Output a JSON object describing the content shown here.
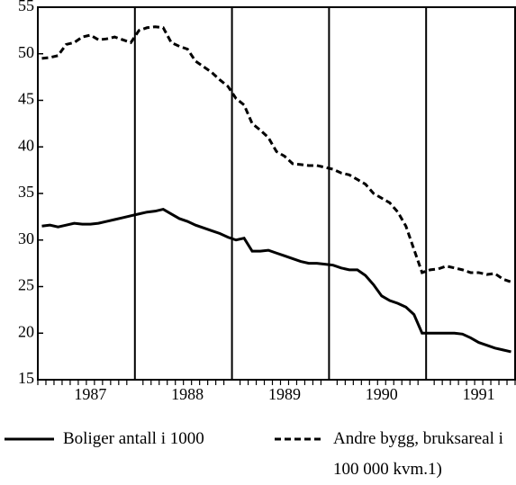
{
  "chart_data": {
    "type": "line",
    "categories": [
      null,
      null,
      null,
      null,
      null,
      null,
      "1987",
      null,
      null,
      null,
      null,
      null,
      null,
      null,
      null,
      null,
      null,
      null,
      "1988",
      null,
      null,
      null,
      null,
      null,
      null,
      null,
      null,
      null,
      null,
      null,
      "1989",
      null,
      null,
      null,
      null,
      null,
      null,
      null,
      null,
      null,
      null,
      null,
      "1990",
      null,
      null,
      null,
      null,
      null,
      null,
      null,
      null,
      null,
      null,
      null,
      "1991",
      null,
      null,
      null,
      null
    ],
    "series": [
      {
        "name": "Boliger antall i 1000",
        "color": "#000000",
        "dash": false,
        "values": [
          31.5,
          31.6,
          31.4,
          31.6,
          31.8,
          31.7,
          31.7,
          31.8,
          32.0,
          32.2,
          32.4,
          32.6,
          32.8,
          33.0,
          33.1,
          33.3,
          32.8,
          32.3,
          32.0,
          31.6,
          31.3,
          31.0,
          30.7,
          30.3,
          30.0,
          30.2,
          28.8,
          28.8,
          28.9,
          28.6,
          28.3,
          28.0,
          27.7,
          27.5,
          27.5,
          27.4,
          27.3,
          27.0,
          26.8,
          26.8,
          26.2,
          25.2,
          24.0,
          23.5,
          23.2,
          22.8,
          22.0,
          20.0,
          20.0,
          20.0,
          20.0,
          20.0,
          19.9,
          19.5,
          19.0,
          18.7,
          18.4,
          18.2,
          18.0
        ]
      },
      {
        "name": "Andre bygg, bruksareal i 100 000 kvm.1)",
        "color": "#000000",
        "dash": true,
        "values": [
          49.5,
          49.6,
          49.8,
          51.0,
          51.2,
          51.8,
          52.0,
          51.5,
          51.6,
          51.8,
          51.5,
          51.2,
          52.5,
          52.8,
          52.9,
          52.8,
          51.2,
          50.8,
          50.5,
          49.2,
          48.6,
          48.0,
          47.2,
          46.5,
          45.2,
          44.5,
          42.5,
          41.8,
          41.0,
          39.5,
          39.0,
          38.2,
          38.1,
          38.0,
          38.0,
          37.8,
          37.6,
          37.2,
          37.0,
          36.5,
          36.0,
          35.0,
          34.5,
          34.0,
          33.0,
          31.5,
          29.0,
          26.5,
          26.8,
          26.9,
          27.2,
          27.0,
          26.8,
          26.5,
          26.5,
          26.3,
          26.4,
          25.8,
          25.5
        ]
      }
    ],
    "ylim": [
      15,
      55
    ],
    "yticks": [
      15,
      20,
      25,
      30,
      35,
      40,
      45,
      50,
      55
    ],
    "grid": false
  }
}
